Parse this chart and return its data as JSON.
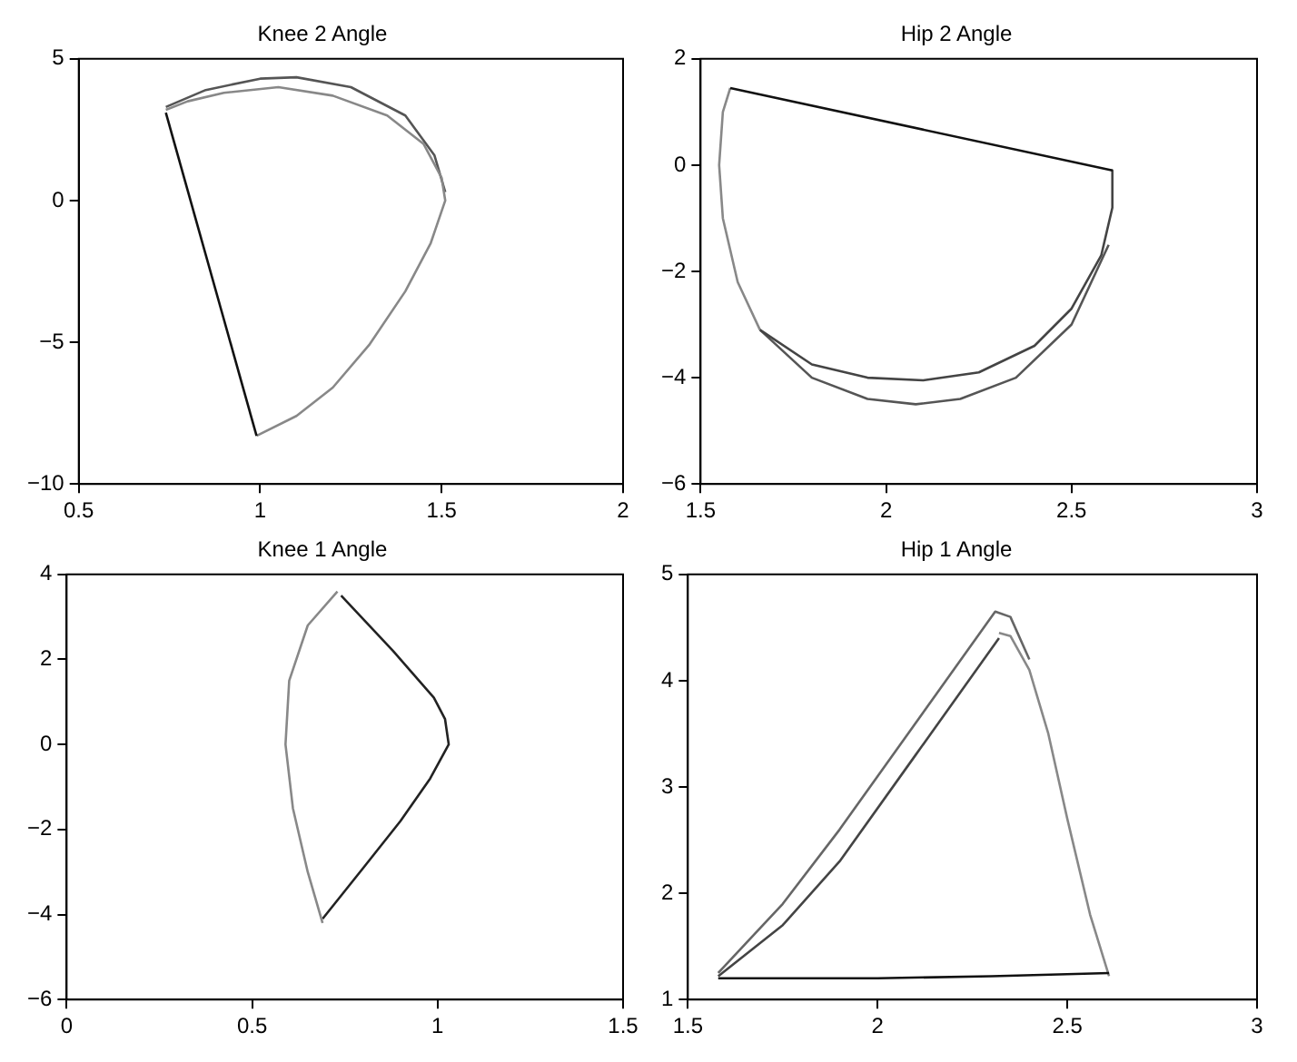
{
  "chart_data": [
    {
      "type": "line",
      "title": "Knee 2 Angle",
      "xlim": [
        0.5,
        2
      ],
      "xticks": [
        0.5,
        1,
        1.5,
        2
      ],
      "ylim": [
        -10,
        5
      ],
      "yticks": [
        -10,
        -5,
        0,
        5
      ],
      "grid": false,
      "legend": false,
      "marker": "none",
      "series": [
        {
          "color": "#111111",
          "x": [
            0.74,
            0.99
          ],
          "values": [
            3.1,
            -8.3
          ]
        },
        {
          "color": "#888888",
          "x": [
            0.99,
            1.1,
            1.2,
            1.3,
            1.4,
            1.47,
            1.51,
            1.5,
            1.45,
            1.35,
            1.2,
            1.05,
            0.9,
            0.8,
            0.74
          ],
          "values": [
            -8.3,
            -7.6,
            -6.6,
            -5.1,
            -3.2,
            -1.5,
            0,
            0.8,
            2,
            3,
            3.7,
            4,
            3.8,
            3.5,
            3.2
          ]
        },
        {
          "color": "#555555",
          "x": [
            0.74,
            0.85,
            1,
            1.1,
            1.25,
            1.4,
            1.48,
            1.51
          ],
          "values": [
            3.3,
            3.9,
            4.3,
            4.35,
            4,
            3,
            1.6,
            0.3
          ]
        }
      ]
    },
    {
      "type": "line",
      "title": "Hip 2 Angle",
      "xlim": [
        1.5,
        3
      ],
      "xticks": [
        1.5,
        2,
        2.5,
        3
      ],
      "ylim": [
        -6,
        2
      ],
      "yticks": [
        -6,
        -4,
        -2,
        0,
        2
      ],
      "grid": false,
      "legend": false,
      "marker": "none",
      "series": [
        {
          "color": "#111111",
          "x": [
            1.58,
            2.61
          ],
          "values": [
            1.45,
            -0.1
          ]
        },
        {
          "color": "#444444",
          "x": [
            2.61,
            2.61,
            2.58,
            2.5,
            2.4,
            2.25,
            2.1,
            1.95,
            1.8,
            1.66
          ],
          "values": [
            -0.1,
            -0.8,
            -1.7,
            -2.7,
            -3.4,
            -3.9,
            -4.05,
            -4,
            -3.75,
            -3.1
          ]
        },
        {
          "color": "#888888",
          "x": [
            1.66,
            1.6,
            1.56,
            1.55,
            1.56,
            1.58
          ],
          "values": [
            -3.1,
            -2.2,
            -1,
            0,
            1,
            1.45
          ]
        },
        {
          "color": "#555555",
          "x": [
            2.6,
            2.5,
            2.35,
            2.2,
            2.08,
            1.95,
            1.8,
            1.66
          ],
          "values": [
            -1.5,
            -3,
            -4,
            -4.4,
            -4.5,
            -4.4,
            -4,
            -3.1
          ]
        }
      ]
    },
    {
      "type": "line",
      "title": "Knee 1 Angle",
      "xlim": [
        0,
        1.5
      ],
      "xticks": [
        0,
        0.5,
        1,
        1.5
      ],
      "ylim": [
        -6,
        4
      ],
      "yticks": [
        -6,
        -4,
        -2,
        0,
        2,
        4
      ],
      "grid": false,
      "legend": false,
      "marker": "none",
      "series": [
        {
          "color": "#888888",
          "x": [
            0.73,
            0.65,
            0.6,
            0.59,
            0.61,
            0.65,
            0.69
          ],
          "values": [
            3.6,
            2.8,
            1.5,
            0,
            -1.5,
            -3,
            -4.2
          ]
        },
        {
          "color": "#222222",
          "x": [
            0.69,
            0.8,
            0.9,
            0.98,
            1.03,
            1.02,
            0.99,
            0.88,
            0.74
          ],
          "values": [
            -4.1,
            -2.9,
            -1.8,
            -0.8,
            0,
            0.6,
            1.1,
            2.2,
            3.5
          ]
        }
      ]
    },
    {
      "type": "line",
      "title": "Hip 1 Angle",
      "xlim": [
        1.5,
        3
      ],
      "xticks": [
        1.5,
        2,
        2.5,
        3
      ],
      "ylim": [
        1,
        5
      ],
      "yticks": [
        1,
        2,
        3,
        4,
        5
      ],
      "grid": false,
      "legend": false,
      "marker": "none",
      "series": [
        {
          "color": "#111111",
          "x": [
            1.58,
            2,
            2.3,
            2.61
          ],
          "values": [
            1.2,
            1.2,
            1.22,
            1.25
          ]
        },
        {
          "color": "#888888",
          "x": [
            2.61,
            2.56,
            2.5,
            2.45,
            2.4,
            2.35,
            2.32
          ],
          "values": [
            1.22,
            1.8,
            2.7,
            3.5,
            4.1,
            4.42,
            4.45
          ]
        },
        {
          "color": "#444444",
          "x": [
            2.32,
            2.1,
            1.9,
            1.75,
            1.58
          ],
          "values": [
            4.4,
            3.3,
            2.3,
            1.7,
            1.22
          ]
        },
        {
          "color": "#666666",
          "x": [
            1.58,
            1.75,
            1.9,
            2.1,
            2.31,
            2.35,
            2.4
          ],
          "values": [
            1.25,
            1.9,
            2.6,
            3.6,
            4.65,
            4.6,
            4.2
          ]
        }
      ]
    }
  ]
}
